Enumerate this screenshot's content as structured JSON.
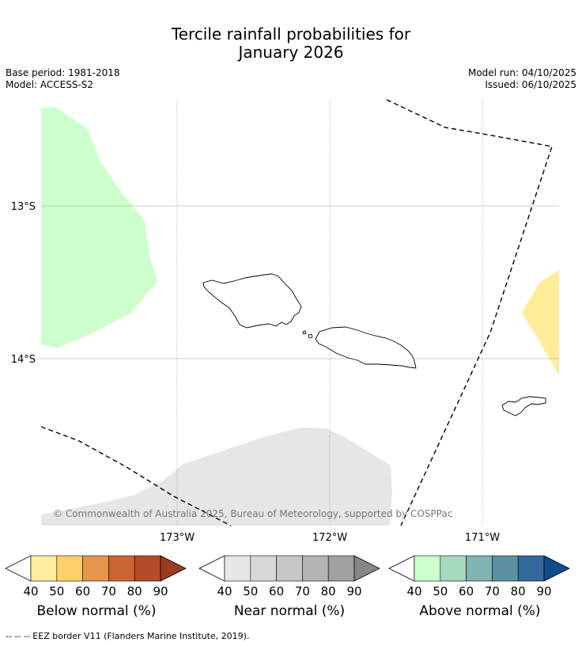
{
  "title": {
    "line1": "Tercile rainfall probabilities for",
    "line2": "January 2026"
  },
  "meta": {
    "base_period": "Base period: 1981-2018",
    "model": "Model: ACCESS-S2",
    "model_run": "Model run: 04/10/2025",
    "issued": "Issued: 06/10/2025"
  },
  "map": {
    "lat_labels": [
      "13°S",
      "14°S"
    ],
    "lon_labels": [
      "173°W",
      "172°W",
      "171°W"
    ],
    "copyright": "© Commonwealth of Australia 2025, Bureau of Meteorology, supported by COSPPac",
    "regions": [
      {
        "name": "above-normal-40-50-region",
        "category": "Above normal",
        "range": "40-50"
      },
      {
        "name": "below-normal-40-50-region",
        "category": "Below normal",
        "range": "40-50"
      },
      {
        "name": "near-normal-40-50-region",
        "category": "Near normal",
        "range": "40-50"
      }
    ],
    "colors": {
      "above_light": "#ccffcc",
      "below_light": "#ffec99",
      "near_light": "#e6e6e6",
      "gridline": "#999999"
    }
  },
  "colorbars": [
    {
      "name": "below",
      "label": "Below normal (%)",
      "ticks": [
        "40",
        "50",
        "60",
        "70",
        "80",
        "90"
      ],
      "colors": [
        "#ffeda0",
        "#fed06b",
        "#e4964a",
        "#cd6333",
        "#b54b28",
        "#9a3c20"
      ]
    },
    {
      "name": "near",
      "label": "Near normal (%)",
      "ticks": [
        "40",
        "50",
        "60",
        "70",
        "80",
        "90"
      ],
      "colors": [
        "#e6e6e6",
        "#d7d7d7",
        "#c7c7c7",
        "#b3b3b3",
        "#a1a1a1",
        "#868686"
      ]
    },
    {
      "name": "above",
      "label": "Above normal (%)",
      "ticks": [
        "40",
        "50",
        "60",
        "70",
        "80",
        "90"
      ],
      "colors": [
        "#ccffcc",
        "#a6d8bf",
        "#80b4b0",
        "#5b91a2",
        "#35699b",
        "#0f4c8a"
      ]
    }
  ],
  "footer": "--  --  -- EEZ border V11 (Flanders Marine Institute, 2019)."
}
